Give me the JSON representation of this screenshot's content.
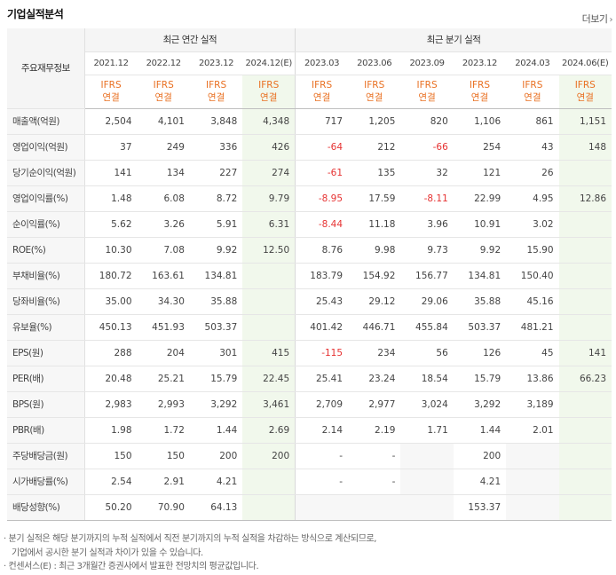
{
  "header": {
    "title": "기업실적분석",
    "more_label": "더보기"
  },
  "table": {
    "row_header_label": "주요재무정보",
    "groups": {
      "annual": "최근 연간 실적",
      "quarter": "최근 분기 실적"
    },
    "periods": [
      "2021.12",
      "2022.12",
      "2023.12",
      "2024.12(E)",
      "2023.03",
      "2023.06",
      "2023.09",
      "2023.12",
      "2024.03",
      "2024.06(E)"
    ],
    "ifrs_label": "IFRS",
    "basis_label": "연결",
    "rows": [
      {
        "label": "매출액(억원)",
        "values": [
          "2,504",
          "4,101",
          "3,848",
          "4,348",
          "717",
          "1,205",
          "820",
          "1,106",
          "861",
          "1,151"
        ]
      },
      {
        "label": "영업이익(억원)",
        "values": [
          "37",
          "249",
          "336",
          "426",
          "-64",
          "212",
          "-66",
          "254",
          "43",
          "148"
        ]
      },
      {
        "label": "당기순이익(억원)",
        "values": [
          "141",
          "134",
          "227",
          "274",
          "-61",
          "135",
          "32",
          "121",
          "26",
          ""
        ]
      },
      {
        "label": "영업이익률(%)",
        "values": [
          "1.48",
          "6.08",
          "8.72",
          "9.79",
          "-8.95",
          "17.59",
          "-8.11",
          "22.99",
          "4.95",
          "12.86"
        ]
      },
      {
        "label": "순이익률(%)",
        "values": [
          "5.62",
          "3.26",
          "5.91",
          "6.31",
          "-8.44",
          "11.18",
          "3.96",
          "10.91",
          "3.02",
          ""
        ]
      },
      {
        "label": "ROE(%)",
        "values": [
          "10.30",
          "7.08",
          "9.92",
          "12.50",
          "8.76",
          "9.98",
          "9.73",
          "9.92",
          "15.90",
          ""
        ]
      },
      {
        "label": "부채비율(%)",
        "values": [
          "180.72",
          "163.61",
          "134.81",
          "",
          "183.79",
          "154.92",
          "156.77",
          "134.81",
          "150.40",
          ""
        ]
      },
      {
        "label": "당좌비율(%)",
        "values": [
          "35.00",
          "34.30",
          "35.88",
          "",
          "25.43",
          "29.12",
          "29.06",
          "35.88",
          "45.16",
          ""
        ]
      },
      {
        "label": "유보율(%)",
        "values": [
          "450.13",
          "451.93",
          "503.37",
          "",
          "401.42",
          "446.71",
          "455.84",
          "503.37",
          "481.21",
          ""
        ]
      },
      {
        "label": "EPS(원)",
        "values": [
          "288",
          "204",
          "301",
          "415",
          "-115",
          "234",
          "56",
          "126",
          "45",
          "141"
        ]
      },
      {
        "label": "PER(배)",
        "values": [
          "20.48",
          "25.21",
          "15.79",
          "22.45",
          "25.41",
          "23.24",
          "18.54",
          "15.79",
          "13.86",
          "66.23"
        ]
      },
      {
        "label": "BPS(원)",
        "values": [
          "2,983",
          "2,993",
          "3,292",
          "3,461",
          "2,709",
          "2,977",
          "3,024",
          "3,292",
          "3,189",
          ""
        ]
      },
      {
        "label": "PBR(배)",
        "values": [
          "1.98",
          "1.72",
          "1.44",
          "2.69",
          "2.14",
          "2.19",
          "1.71",
          "1.44",
          "2.01",
          ""
        ]
      },
      {
        "label": "주당배당금(원)",
        "values": [
          "150",
          "150",
          "200",
          "200",
          "-",
          "-",
          "",
          "200",
          "",
          ""
        ]
      },
      {
        "label": "시가배당률(%)",
        "values": [
          "2.54",
          "2.91",
          "4.21",
          "",
          "-",
          "-",
          "",
          "4.21",
          "",
          ""
        ]
      },
      {
        "label": "배당성향(%)",
        "values": [
          "50.20",
          "70.90",
          "64.13",
          "",
          "",
          "",
          "",
          "153.37",
          "",
          ""
        ]
      }
    ]
  },
  "notes": {
    "line1": "· 분기 실적은 해당 분기까지의 누적 실적에서 직전 분기까지의 누적 실적을 차감하는 방식으로 계산되므로,",
    "line2": "기업에서 공시한 분기 실적과 차이가 있을 수 있습니다.",
    "line3": "· 컨센서스(E) : 최근 3개월간 증권사에서 발표한 전망치의 평균값입니다."
  },
  "colors": {
    "ifrs_orange": "#e97022",
    "negative_red": "#e63232",
    "estimate_green": "#f1f8ec"
  }
}
